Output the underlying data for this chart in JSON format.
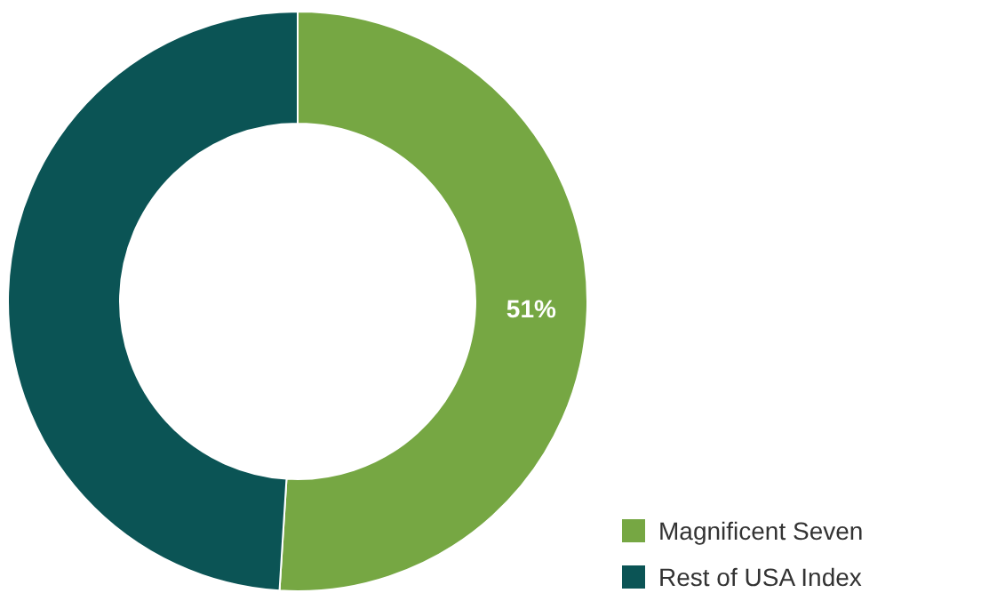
{
  "chart_data": {
    "type": "donut",
    "categories": [
      "Magnificent Seven",
      "Rest of USA Index"
    ],
    "values": [
      51,
      49
    ],
    "colors": [
      "#76a743",
      "#0b5455"
    ],
    "value_labels": [
      "51%",
      null
    ],
    "legend": "bottom right"
  }
}
